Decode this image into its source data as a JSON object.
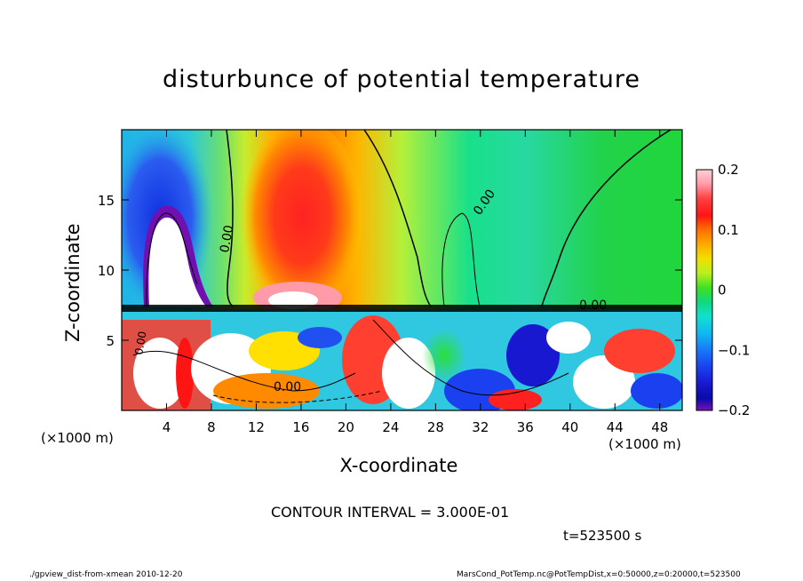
{
  "chart_data": {
    "type": "heatmap",
    "title": "disturbunce of potential temperature",
    "xlabel": "X-coordinate",
    "ylabel": "Z-coordinate",
    "x_unit": "(×1000 m)",
    "xlim": [
      0,
      50
    ],
    "ylim": [
      0,
      20
    ],
    "x_ticks": [
      "4",
      "8",
      "12",
      "16",
      "20",
      "24",
      "28",
      "32",
      "36",
      "40",
      "44",
      "48"
    ],
    "y_ticks": [
      "5",
      "10",
      "15"
    ],
    "colorbar": {
      "range": [
        -0.2,
        0.2
      ],
      "tick_labels": [
        "0.2",
        "0.1",
        "0",
        "−0.1",
        "−0.2"
      ]
    },
    "contour_labels": [
      "0.00",
      "0.00",
      "0.00",
      "0.00",
      "0.00"
    ],
    "contour_interval": "CONTOUR INTERVAL = 3.000E-01",
    "time": "t=523500 s",
    "footer_left": "./gpview_dist-from-xmean  2010-12-20",
    "footer_right": "MarsCond_PotTemp.nc@PotTempDist,x=0:50000,z=0:20000,t=523500"
  }
}
